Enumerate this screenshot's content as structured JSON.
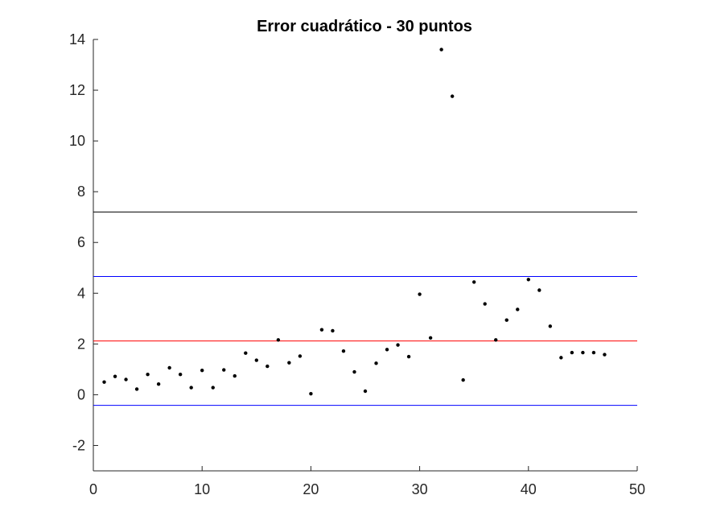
{
  "chart_data": {
    "type": "scatter",
    "title": "Error cuadrático - 30 puntos",
    "xlabel": "",
    "ylabel": "",
    "xlim": [
      0,
      50
    ],
    "ylim": [
      -3,
      14
    ],
    "xticks": [
      "0",
      "10",
      "20",
      "30",
      "40",
      "50"
    ],
    "yticks": [
      "-2",
      "0",
      "2",
      "4",
      "6",
      "8",
      "10",
      "12",
      "14"
    ],
    "grid": false,
    "legend": "none",
    "points": {
      "x": [
        1,
        2,
        3,
        4,
        5,
        6,
        7,
        8,
        9,
        10,
        11,
        12,
        13,
        14,
        15,
        16,
        17,
        18,
        19,
        20,
        21,
        22,
        23,
        24,
        25,
        26,
        27,
        28,
        29,
        30,
        31,
        32,
        33,
        34,
        35,
        36,
        37,
        38,
        39,
        40,
        41,
        42,
        43,
        44,
        45,
        46,
        47
      ],
      "y": [
        0.5,
        0.72,
        0.6,
        0.22,
        0.8,
        0.42,
        1.06,
        0.8,
        0.28,
        0.96,
        0.28,
        0.98,
        0.74,
        1.64,
        1.36,
        1.12,
        2.16,
        1.26,
        1.52,
        0.04,
        2.56,
        2.52,
        1.72,
        0.9,
        0.14,
        1.24,
        1.78,
        1.96,
        1.5,
        3.96,
        2.24,
        13.6,
        11.76,
        0.58,
        4.44,
        3.58,
        2.16,
        2.94,
        3.36,
        4.54,
        4.12,
        2.7,
        1.46,
        1.66,
        1.66,
        1.66,
        1.58
      ],
      "color": "#000000"
    },
    "reference_lines": [
      {
        "y": 7.2,
        "color": "#000000"
      },
      {
        "y": 4.66,
        "color": "#0000ff"
      },
      {
        "y": 2.12,
        "color": "#ff0000"
      },
      {
        "y": -0.42,
        "color": "#0000ff"
      }
    ]
  }
}
